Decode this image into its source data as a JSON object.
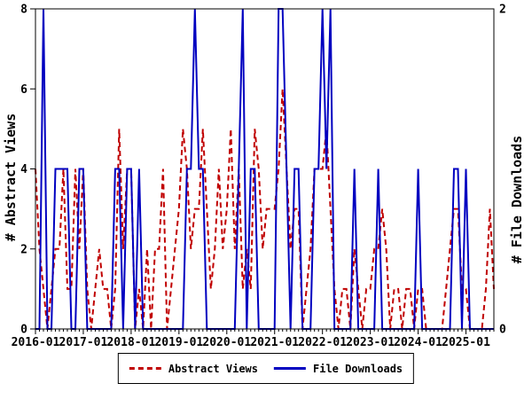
{
  "chart_data": {
    "type": "line",
    "title": "",
    "background": "#ffffff",
    "axis_color": "#000000",
    "x_axis": {
      "tick_labels": [
        "2016-01",
        "2017-01",
        "2018-01",
        "2019-01",
        "2020-01",
        "2021-01",
        "2022-01",
        "2023-01",
        "2024-01",
        "2025-01"
      ],
      "minor_ticks": "monthly",
      "start": "2016-01",
      "end": "2025-08"
    },
    "left_axis": {
      "label": "# Abstract Views",
      "range": [
        0,
        8
      ],
      "ticks": [
        0,
        2,
        4,
        6,
        8
      ]
    },
    "right_axis": {
      "label": "# File Downloads",
      "range": [
        0,
        2
      ],
      "ticks": [
        0,
        2
      ]
    },
    "series": [
      {
        "name": "Abstract Views",
        "axis": "left",
        "color": "#c00000",
        "line_style": "dashed",
        "values": [
          4,
          2,
          1,
          0,
          1,
          2,
          2,
          4,
          1,
          1,
          4,
          2,
          4,
          1,
          0,
          1,
          2,
          1,
          1,
          0,
          1,
          5,
          2,
          4,
          4,
          0,
          1,
          0,
          2,
          0,
          2,
          2,
          4,
          0,
          1,
          2,
          3,
          5,
          4,
          2,
          3,
          3,
          5,
          3,
          1,
          2,
          4,
          2,
          3,
          5,
          2,
          4,
          1,
          2,
          1,
          5,
          4,
          2,
          3,
          3,
          3,
          4,
          6,
          4,
          2,
          3,
          3,
          0,
          1,
          2,
          4,
          4,
          4,
          5,
          3,
          1,
          0,
          1,
          1,
          0,
          2,
          1,
          0,
          1,
          1,
          2,
          2,
          3,
          2,
          0,
          1,
          1,
          0,
          1,
          1,
          0,
          1,
          1,
          0,
          0,
          0,
          0,
          0,
          1,
          2,
          3,
          3,
          1,
          1,
          0,
          0,
          0,
          0,
          1,
          3,
          1
        ]
      },
      {
        "name": "File Downloads",
        "axis": "right",
        "color": "#0000c0",
        "line_style": "solid",
        "values": [
          0,
          0,
          2,
          0,
          0,
          1,
          1,
          1,
          1,
          0,
          0,
          1,
          1,
          0,
          0,
          0,
          0,
          0,
          0,
          0,
          1,
          1,
          0,
          1,
          1,
          0,
          1,
          0,
          0,
          0,
          0,
          0,
          0,
          0,
          0,
          0,
          0,
          0,
          1,
          1,
          2,
          1,
          1,
          0,
          0,
          0,
          0,
          0,
          0,
          0,
          0,
          1,
          2,
          0,
          1,
          1,
          0,
          0,
          0,
          0,
          0,
          2,
          2,
          1,
          0,
          1,
          1,
          0,
          0,
          0,
          1,
          1,
          2,
          1,
          2,
          0,
          0,
          0,
          0,
          0,
          1,
          0,
          0,
          0,
          0,
          0,
          1,
          0,
          0,
          0,
          0,
          0,
          0,
          0,
          0,
          0,
          1,
          0,
          0,
          0,
          0,
          0,
          0,
          0,
          0,
          1,
          1,
          0,
          1,
          0,
          0,
          0,
          0,
          0,
          0,
          0
        ]
      }
    ],
    "legend": {
      "position": "bottom-center",
      "entries": [
        "Abstract Views",
        "File Downloads"
      ]
    }
  }
}
